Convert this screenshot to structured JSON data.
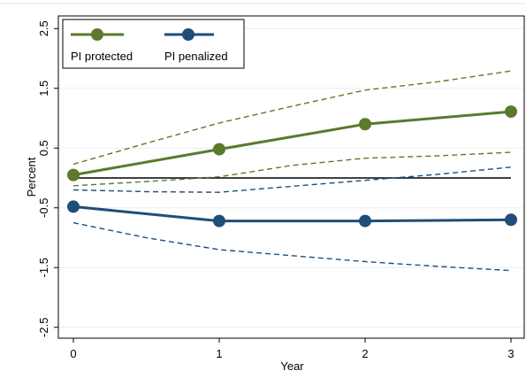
{
  "chart_data": {
    "type": "line",
    "xlabel": "Year",
    "ylabel": "Percent",
    "xlim": [
      0,
      3
    ],
    "ylim": [
      -3,
      2.75
    ],
    "xticks": [
      0,
      1,
      2,
      3
    ],
    "xtick_labels": [
      "0",
      "1",
      "2",
      "3"
    ],
    "yticks": [
      2.5,
      1.5,
      0.5,
      -0.5,
      -1.5,
      -2.5
    ],
    "ytick_labels": [
      "2.5",
      "1.5",
      "0.5",
      "-0.5",
      "-1.5",
      "-2.5"
    ],
    "grid": "horizontal",
    "reference_line_y": 0,
    "legend_position": "top-left",
    "series": [
      {
        "name": "PI protected",
        "color": "#5a7a2e",
        "x": [
          0,
          1,
          2,
          3
        ],
        "values": [
          0.05,
          0.48,
          0.9,
          1.11
        ],
        "ci_lower": [
          -0.13,
          0.02,
          0.33,
          0.43
        ],
        "ci_upper": [
          0.23,
          0.92,
          1.47,
          1.79
        ],
        "ci_x": [
          0,
          0.5,
          1,
          1.5,
          2,
          2.5,
          3
        ],
        "ci_lower_curve": [
          -0.13,
          -0.06,
          0.02,
          0.21,
          0.33,
          0.37,
          0.43
        ],
        "ci_upper_curve": [
          0.23,
          0.58,
          0.92,
          1.2,
          1.47,
          1.61,
          1.79
        ]
      },
      {
        "name": "PI penalized",
        "color": "#1f4e79",
        "x": [
          0,
          1,
          2,
          3
        ],
        "values": [
          -0.48,
          -0.72,
          -0.72,
          -0.7
        ],
        "ci_lower": [
          -0.75,
          -1.2,
          -1.4,
          -1.55
        ],
        "ci_upper": [
          -0.2,
          -0.24,
          -0.04,
          0.18
        ],
        "ci_x": [
          0,
          0.5,
          1,
          1.5,
          2,
          2.5,
          3
        ],
        "ci_lower_curve": [
          -0.75,
          -1.0,
          -1.2,
          -1.3,
          -1.4,
          -1.48,
          -1.55
        ],
        "ci_upper_curve": [
          -0.2,
          -0.23,
          -0.24,
          -0.14,
          -0.04,
          0.06,
          0.18
        ]
      }
    ]
  }
}
